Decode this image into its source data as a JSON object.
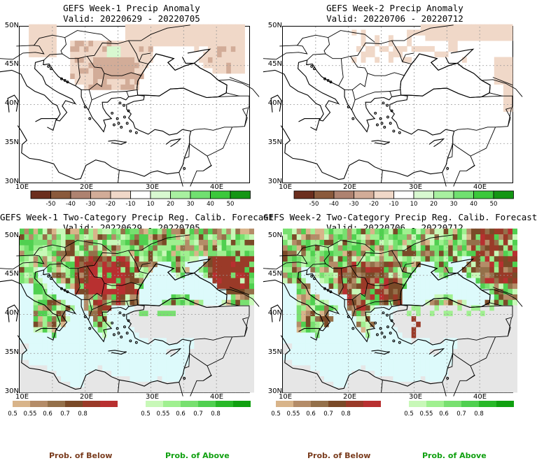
{
  "chart_data": [
    {
      "type": "heatmap",
      "title": "GEFS Week-1 Precip Anomaly",
      "subtitle": "Valid: 20220629 - 20220705",
      "lat_labels": [
        "50N",
        "45N",
        "40N",
        "35N",
        "30N"
      ],
      "lon_labels": [
        "10E",
        "20E",
        "30E",
        "40E"
      ],
      "colorbar_ticks": [
        "-50",
        "-40",
        "-30",
        "-20",
        "-10",
        "10",
        "20",
        "30",
        "40",
        "50"
      ],
      "colors": [
        "#6b2e1e",
        "#8a5a3c",
        "#ae8270",
        "#d2ac98",
        "#f0d8c8",
        "#ffffff",
        "#d8f8d0",
        "#a8f0a0",
        "#70e070",
        "#3cc83c",
        "#149614"
      ]
    },
    {
      "type": "heatmap",
      "title": "GEFS Week-2 Precip Anomaly",
      "subtitle": "Valid: 20220706 - 20220712",
      "lat_labels": [
        "50N",
        "45N",
        "40N",
        "35N",
        "30N"
      ],
      "lon_labels": [
        "10E",
        "20E",
        "30E",
        "40E"
      ],
      "colorbar_ticks": [
        "-50",
        "-40",
        "-30",
        "-20",
        "-10",
        "10",
        "20",
        "30",
        "40",
        "50"
      ],
      "colors": [
        "#6b2e1e",
        "#8a5a3c",
        "#ae8270",
        "#d2ac98",
        "#f0d8c8",
        "#ffffff",
        "#d8f8d0",
        "#a8f0a0",
        "#70e070",
        "#3cc83c",
        "#149614"
      ]
    },
    {
      "type": "heatmap",
      "title": "GEFS Week-1 Two-Category Precip Reg. Calib. Forecast",
      "subtitle": "Valid: 20220629 - 20220705",
      "lat_labels": [
        "50N",
        "45N",
        "40N",
        "35N",
        "30N"
      ],
      "lon_labels": [
        "10E",
        "20E",
        "30E",
        "40E"
      ],
      "below_ticks": [
        "0.5",
        "0.55",
        "0.6",
        "0.7",
        "0.8"
      ],
      "above_ticks": [
        "0.5",
        "0.55",
        "0.6",
        "0.7",
        "0.8"
      ],
      "below_colors": [
        "#d8b48a",
        "#b48c68",
        "#94704a",
        "#7a4a28",
        "#9a3a28",
        "#b83030"
      ],
      "above_colors": [
        "#c8f8b8",
        "#a0f090",
        "#78e070",
        "#50d050",
        "#28b828",
        "#10a010"
      ]
    },
    {
      "type": "heatmap",
      "title": "GEFS Week-2 Two-Category Precip Reg. Calib. Forecast",
      "subtitle": "Valid: 20220706 - 20220712",
      "lat_labels": [
        "50N",
        "45N",
        "40N",
        "35N",
        "30N"
      ],
      "lon_labels": [
        "10E",
        "20E",
        "30E",
        "40E"
      ],
      "below_ticks": [
        "0.5",
        "0.55",
        "0.6",
        "0.7",
        "0.8"
      ],
      "above_ticks": [
        "0.5",
        "0.55",
        "0.6",
        "0.7",
        "0.8"
      ],
      "below_colors": [
        "#d8b48a",
        "#b48c68",
        "#94704a",
        "#7a4a28",
        "#9a3a28",
        "#b83030"
      ],
      "above_colors": [
        "#c8f8b8",
        "#a0f090",
        "#78e070",
        "#50d050",
        "#28b828",
        "#10a010"
      ]
    }
  ],
  "footer": {
    "below_left": "Prob. of Below",
    "above_left": "Prob. of Above",
    "below_right": "Prob. of Below",
    "above_right": "Prob. of Above"
  }
}
